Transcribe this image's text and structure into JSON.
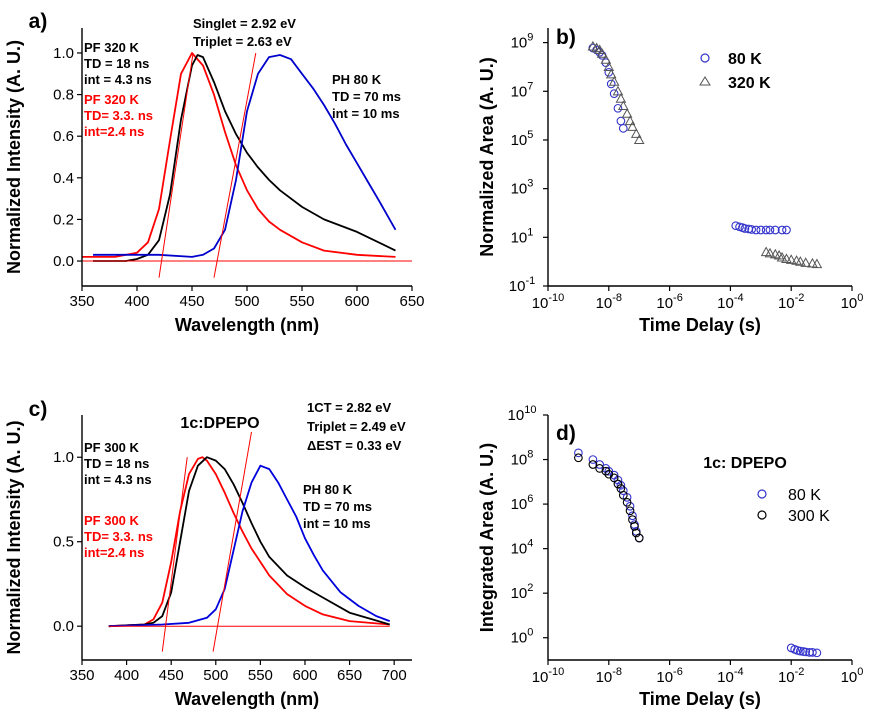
{
  "chart_data": [
    {
      "panel": "a)",
      "type": "line",
      "xlabel": "Wavelength (nm)",
      "ylabel": "Normalized Intensity (A. U.)",
      "xlim": [
        350,
        650
      ],
      "ylim": [
        -0.12,
        1.12
      ],
      "xticks": [
        350,
        400,
        450,
        500,
        550,
        600,
        650
      ],
      "yticks": [
        0.0,
        0.2,
        0.4,
        0.6,
        0.8,
        1.0
      ],
      "ytick_labels": [
        "0.0",
        "0.2",
        "0.4",
        "0.6",
        "0.8",
        "1.0"
      ],
      "series": [
        {
          "color": "#ff0000",
          "x": [
            350,
            380,
            400,
            410,
            420,
            430,
            440,
            450,
            460,
            470,
            480,
            490,
            500,
            510,
            520,
            530,
            550,
            570,
            600,
            635
          ],
          "y": [
            0.02,
            0.02,
            0.04,
            0.09,
            0.25,
            0.58,
            0.9,
            1.0,
            0.94,
            0.8,
            0.62,
            0.46,
            0.34,
            0.25,
            0.19,
            0.15,
            0.09,
            0.05,
            0.03,
            0.02
          ]
        },
        {
          "color": "#000000",
          "x": [
            360,
            390,
            400,
            410,
            420,
            430,
            440,
            450,
            455,
            460,
            470,
            480,
            490,
            500,
            510,
            520,
            530,
            550,
            570,
            600,
            635
          ],
          "y": [
            0.0,
            0.0,
            0.01,
            0.03,
            0.1,
            0.32,
            0.68,
            0.94,
            0.99,
            0.98,
            0.86,
            0.72,
            0.61,
            0.52,
            0.45,
            0.39,
            0.34,
            0.26,
            0.2,
            0.14,
            0.05
          ]
        },
        {
          "color": "#0000cc",
          "x": [
            360,
            420,
            450,
            460,
            470,
            480,
            490,
            500,
            510,
            520,
            530,
            540,
            550,
            560,
            570,
            580,
            590,
            600,
            610,
            620,
            635
          ],
          "y": [
            0.03,
            0.03,
            0.02,
            0.03,
            0.06,
            0.15,
            0.39,
            0.72,
            0.9,
            0.98,
            0.99,
            0.97,
            0.9,
            0.83,
            0.75,
            0.66,
            0.56,
            0.47,
            0.38,
            0.29,
            0.15
          ]
        },
        {
          "color": "#ff0000",
          "x": [
            350,
            650
          ],
          "y": [
            0.0,
            0.0
          ]
        },
        {
          "color": "#ff0000",
          "x": [
            420,
            451
          ],
          "y": [
            -0.08,
            1.0
          ]
        },
        {
          "color": "#ff0000",
          "x": [
            470,
            508
          ],
          "y": [
            -0.08,
            1.0
          ]
        }
      ],
      "annotations": [
        {
          "lines": [
            "PF 320 K",
            "TD = 18 ns",
            "int = 4.3 ns"
          ],
          "color": "#000000"
        },
        {
          "lines": [
            "PF 320 K",
            "TD= 3.3. ns",
            "int=2.4 ns"
          ],
          "color": "#ff0000"
        },
        {
          "lines": [
            "Singlet = 2.92 eV",
            "Triplet = 2.63 eV"
          ],
          "color": "#000000"
        },
        {
          "lines": [
            "PH 80 K",
            "TD = 70 ms",
            "int = 10 ms"
          ],
          "color": "#000000"
        }
      ]
    },
    {
      "panel": "b)",
      "type": "scatter",
      "xscale": "log",
      "yscale": "log",
      "xlabel": "Time Delay (s)",
      "ylabel": "Normalized Area (A. U.)",
      "xlim_exp": [
        -10,
        0
      ],
      "ylim_exp": [
        -1,
        9.6
      ],
      "xticks_exp": [
        -10,
        -8,
        -6,
        -4,
        -2,
        0
      ],
      "yticks_exp": [
        -1,
        1,
        3,
        5,
        7,
        9
      ],
      "legend_position": "top-right",
      "series": [
        {
          "name": "80 K",
          "marker": "circle",
          "color": "#3333cc",
          "x": [
            3e-09,
            4e-09,
            5e-09,
            6e-09,
            8e-09,
            1e-08,
            1.2e-08,
            1.5e-08,
            2e-08,
            2.5e-08,
            3e-08,
            0.00015,
            0.0002,
            0.00025,
            0.0003,
            0.0004,
            0.0005,
            0.0007,
            0.001,
            0.0015,
            0.002,
            0.003,
            0.005,
            0.007
          ],
          "y": [
            600000000.0,
            500000000.0,
            400000000.0,
            300000000.0,
            150000000.0,
            60000000.0,
            20000000.0,
            8000000.0,
            2000000.0,
            600000.0,
            300000.0,
            30,
            27,
            25,
            23,
            22,
            21,
            20,
            20,
            20,
            20,
            20,
            20,
            20
          ]
        },
        {
          "name": "320 K",
          "marker": "triangle",
          "color": "#555555",
          "x": [
            3e-09,
            4e-09,
            5e-09,
            6e-09,
            8e-09,
            1e-08,
            1.2e-08,
            1.5e-08,
            2e-08,
            2.5e-08,
            3e-08,
            4e-08,
            5e-08,
            6e-08,
            8e-08,
            1e-07,
            0.0015,
            0.002,
            0.003,
            0.004,
            0.005,
            0.007,
            0.01,
            0.015,
            0.02,
            0.03,
            0.05,
            0.07
          ],
          "y": [
            700000000.0,
            600000000.0,
            500000000.0,
            350000000.0,
            200000000.0,
            100000000.0,
            50000000.0,
            25000000.0,
            10000000.0,
            5000000.0,
            2500000.0,
            1200000.0,
            600000.0,
            350000.0,
            180000.0,
            100000.0,
            2.5,
            2.2,
            2.0,
            1.8,
            1.5,
            1.3,
            1.2,
            1.1,
            1.0,
            0.9,
            0.85,
            0.8
          ]
        }
      ]
    },
    {
      "panel": "c)",
      "type": "line",
      "title": "1c:DPEPO",
      "xlabel": "Wavelength (nm)",
      "ylabel": "Normalized Intensity (A. U.)",
      "xlim": [
        350,
        720
      ],
      "ylim": [
        -0.2,
        1.25
      ],
      "xticks": [
        350,
        400,
        450,
        500,
        550,
        600,
        650,
        700
      ],
      "yticks": [
        0.0,
        0.5,
        1.0
      ],
      "ytick_labels": [
        "0.0",
        "0.5",
        "1.0"
      ],
      "series": [
        {
          "color": "#ff0000",
          "x": [
            380,
            420,
            430,
            440,
            450,
            460,
            470,
            480,
            485,
            490,
            500,
            510,
            520,
            530,
            540,
            550,
            560,
            580,
            600,
            620,
            650,
            695
          ],
          "y": [
            0.0,
            0.01,
            0.04,
            0.14,
            0.38,
            0.68,
            0.9,
            0.99,
            1.0,
            0.98,
            0.9,
            0.79,
            0.67,
            0.56,
            0.46,
            0.38,
            0.3,
            0.19,
            0.12,
            0.07,
            0.03,
            0.01
          ]
        },
        {
          "color": "#000000",
          "x": [
            380,
            420,
            430,
            440,
            450,
            460,
            470,
            480,
            490,
            500,
            510,
            520,
            530,
            540,
            550,
            560,
            580,
            600,
            620,
            650,
            695
          ],
          "y": [
            0.0,
            0.01,
            0.02,
            0.06,
            0.2,
            0.5,
            0.8,
            0.95,
            1.0,
            0.98,
            0.93,
            0.84,
            0.73,
            0.61,
            0.5,
            0.41,
            0.3,
            0.23,
            0.17,
            0.08,
            0.01
          ]
        },
        {
          "color": "#0000dd",
          "x": [
            380,
            440,
            470,
            490,
            500,
            510,
            520,
            530,
            540,
            550,
            560,
            570,
            580,
            590,
            600,
            610,
            620,
            640,
            660,
            680,
            695
          ],
          "y": [
            0.0,
            0.01,
            0.02,
            0.05,
            0.1,
            0.22,
            0.45,
            0.68,
            0.85,
            0.95,
            0.93,
            0.85,
            0.75,
            0.65,
            0.52,
            0.42,
            0.33,
            0.2,
            0.12,
            0.06,
            0.03
          ]
        },
        {
          "color": "#ff0000",
          "x": [
            380,
            695
          ],
          "y": [
            0.0,
            0.0
          ]
        },
        {
          "color": "#ff0000",
          "x": [
            440,
            468
          ],
          "y": [
            -0.15,
            1.0
          ]
        },
        {
          "color": "#ff0000",
          "x": [
            497,
            540
          ],
          "y": [
            -0.15,
            1.15
          ]
        }
      ],
      "annotations": [
        {
          "lines": [
            "PF 300 K",
            "TD = 18 ns",
            "int = 4.3 ns"
          ],
          "color": "#000000"
        },
        {
          "lines": [
            "PF 300 K",
            "TD= 3.3. ns",
            "int=2.4 ns"
          ],
          "color": "#ff0000"
        },
        {
          "lines": [
            "1CT = 2.82 eV",
            "Triplet = 2.49 eV",
            "ΔEST = 0.33 eV"
          ],
          "color": "#000000"
        },
        {
          "lines": [
            "PH 80 K",
            "TD = 70 ms",
            "int  = 10 ms"
          ],
          "color": "#000000"
        }
      ]
    },
    {
      "panel": "d)",
      "type": "scatter",
      "xscale": "log",
      "yscale": "log",
      "title": "1c: DPEPO",
      "xlabel": "Time Delay (s)",
      "ylabel": "Integrated Area (A. U.)",
      "xlim_exp": [
        -10,
        0
      ],
      "ylim_exp": [
        -1,
        10
      ],
      "xticks_exp": [
        -10,
        -8,
        -6,
        -4,
        -2,
        0
      ],
      "yticks_exp": [
        0,
        2,
        4,
        6,
        8,
        10
      ],
      "legend_position": "right",
      "series": [
        {
          "name": "80 K",
          "marker": "circle",
          "color": "#3333cc",
          "x": [
            1e-09,
            3e-09,
            5e-09,
            8e-09,
            1e-08,
            1.5e-08,
            2e-08,
            2.5e-08,
            3e-08,
            4e-08,
            5e-08,
            6e-08,
            7e-08,
            8e-08,
            1e-07,
            0.01,
            0.013,
            0.016,
            0.02,
            0.025,
            0.03,
            0.04,
            0.05,
            0.07
          ],
          "y": [
            200000000.0,
            100000000.0,
            60000000.0,
            40000000.0,
            30000000.0,
            20000000.0,
            12000000.0,
            7000000.0,
            4000000.0,
            2000000.0,
            800000.0,
            300000.0,
            120000.0,
            60000.0,
            30000.0,
            0.35,
            0.3,
            0.27,
            0.25,
            0.24,
            0.23,
            0.22,
            0.22,
            0.21
          ]
        },
        {
          "name": "300 K",
          "marker": "circle",
          "color": "#000000",
          "x": [
            1e-09,
            3e-09,
            5e-09,
            8e-09,
            1e-08,
            1.5e-08,
            2e-08,
            2.5e-08,
            3e-08,
            4e-08,
            5e-08,
            6e-08,
            7e-08,
            8e-08,
            1e-07
          ],
          "y": [
            120000000.0,
            60000000.0,
            40000000.0,
            30000000.0,
            22000000.0,
            15000000.0,
            8000000.0,
            5000000.0,
            2500000.0,
            1200000.0,
            500000.0,
            200000.0,
            100000.0,
            50000.0,
            30000.0
          ]
        }
      ]
    }
  ]
}
